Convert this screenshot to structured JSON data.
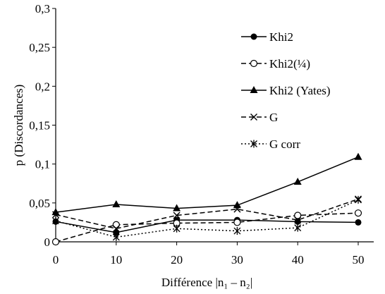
{
  "chart_data": {
    "type": "line",
    "x": [
      0,
      10,
      20,
      30,
      40,
      50
    ],
    "xlim": [
      0,
      50
    ],
    "ylim": [
      0,
      0.3
    ],
    "x_ticks": [
      "0",
      "10",
      "20",
      "30",
      "40",
      "50"
    ],
    "y_ticks": [
      "0",
      "0,05",
      "0,1",
      "0,15",
      "0,2",
      "0,25",
      "0,3"
    ],
    "xlabel": "Différence |n₁ – n₂|",
    "ylabel": "p (Discordances)",
    "grid": false,
    "legend_position": "top-right",
    "series": [
      {
        "name": "Khi2",
        "marker": "filled-circle",
        "line": "solid",
        "values": [
          0.026,
          0.012,
          0.028,
          0.028,
          0.026,
          0.025
        ]
      },
      {
        "name": "Khi2(¼)",
        "marker": "open-circle",
        "line": "dashed",
        "values": [
          0.0,
          0.022,
          0.024,
          0.025,
          0.034,
          0.037
        ]
      },
      {
        "name": "Khi2 (Yates)",
        "marker": "triangle",
        "line": "solid",
        "values": [
          0.038,
          0.048,
          0.043,
          0.047,
          0.077,
          0.109
        ]
      },
      {
        "name": "G",
        "marker": "x",
        "line": "dashed",
        "values": [
          0.035,
          0.017,
          0.034,
          0.042,
          0.028,
          0.055
        ]
      },
      {
        "name": "G corr",
        "marker": "asterisk",
        "line": "dotted",
        "values": [
          0.027,
          0.006,
          0.017,
          0.014,
          0.018,
          0.054
        ]
      }
    ]
  }
}
